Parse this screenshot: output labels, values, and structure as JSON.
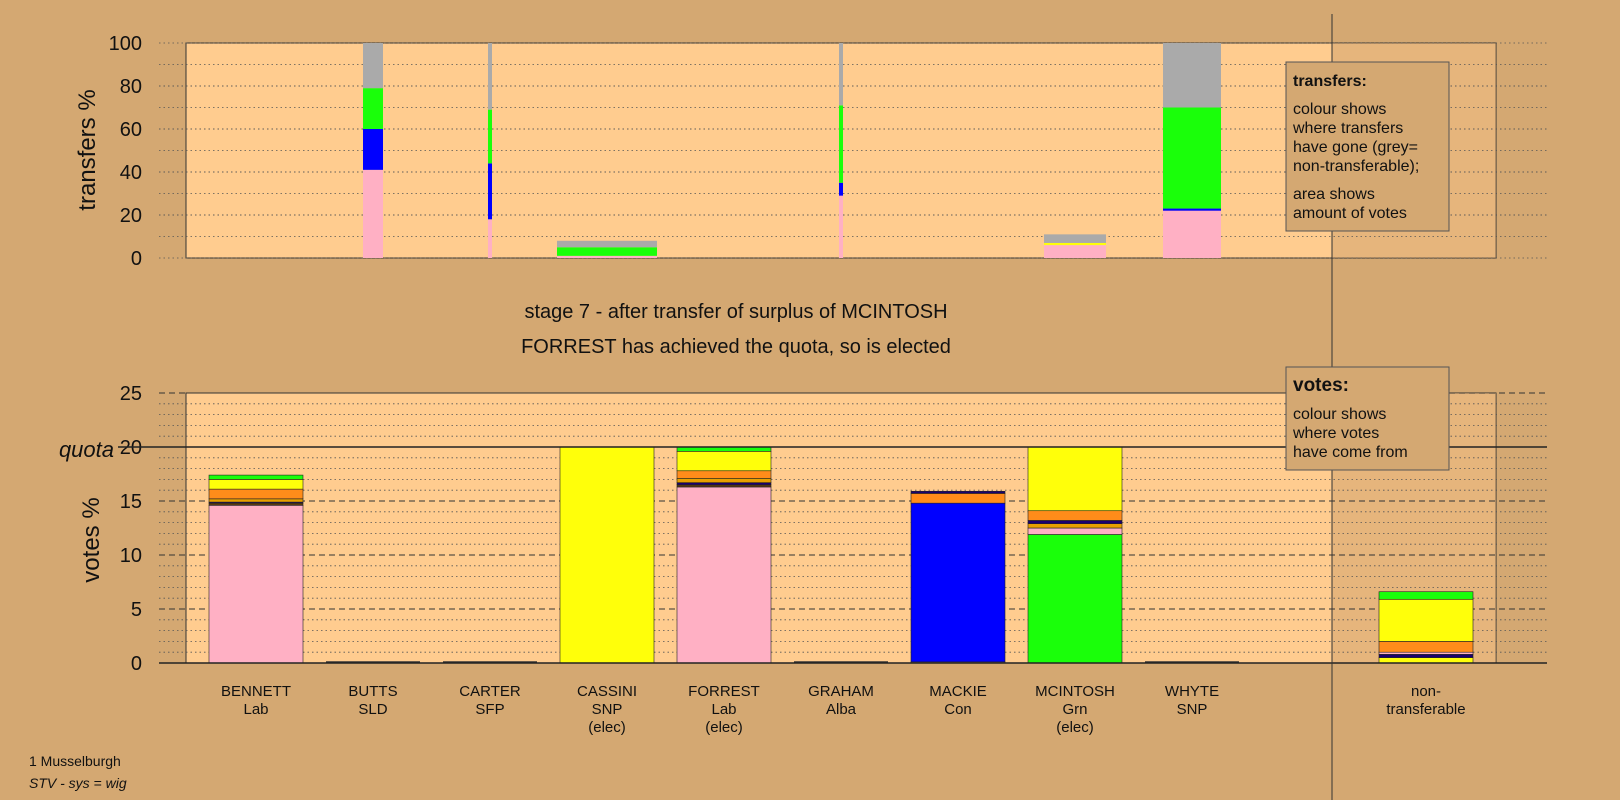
{
  "colors": {
    "background": "#d4a872",
    "plot_background": "#ffcc8f",
    "shade": "#c79a67",
    "Lab": "#ffb0c4",
    "Con": "#0000ff",
    "Grn": "#1aff0a",
    "SNP": "#ffff0a",
    "Alba": "#1a0070",
    "SFP": "#e8a000",
    "SLD": "#ff8c1a",
    "Other": "#5a3a10",
    "non-transferable": "#aaaaaa"
  },
  "chart_data": [
    {
      "type": "bar",
      "stacked": true,
      "name_key": "transfers",
      "ylabel": "transfers %",
      "ylim": [
        0,
        100
      ],
      "yticks": [
        0,
        20,
        40,
        60,
        80,
        100
      ],
      "grid": true,
      "categories": [
        "BENNETT",
        "BUTTS",
        "CARTER",
        "CASSINI",
        "FORREST",
        "GRAHAM",
        "MACKIE",
        "MCINTOSH",
        "WHYTE"
      ],
      "bars": [
        {
          "category": "BUTTS",
          "width_pct": 20,
          "segments": [
            {
              "party": "Lab",
              "value": 41
            },
            {
              "party": "Con",
              "value": 19
            },
            {
              "party": "Grn",
              "value": 19
            },
            {
              "party": "non-transferable",
              "value": 21
            }
          ]
        },
        {
          "category": "CARTER",
          "width_pct": 4,
          "segments": [
            {
              "party": "Lab",
              "value": 18
            },
            {
              "party": "Con",
              "value": 26
            },
            {
              "party": "Grn",
              "value": 25
            },
            {
              "party": "non-transferable",
              "value": 31
            }
          ]
        },
        {
          "category": "CASSINI",
          "width_pct": 100,
          "segments": [
            {
              "party": "Lab",
              "value": 1
            },
            {
              "party": "Grn",
              "value": 4
            },
            {
              "party": "non-transferable",
              "value": 3
            }
          ]
        },
        {
          "category": "GRAHAM",
          "width_pct": 4,
          "segments": [
            {
              "party": "Lab",
              "value": 29
            },
            {
              "party": "Con",
              "value": 6
            },
            {
              "party": "Grn",
              "value": 36
            },
            {
              "party": "non-transferable",
              "value": 29
            }
          ]
        },
        {
          "category": "MCINTOSH",
          "width_pct": 62,
          "segments": [
            {
              "party": "Lab",
              "value": 6
            },
            {
              "party": "SNP",
              "value": 1
            },
            {
              "party": "non-transferable",
              "value": 4
            }
          ]
        },
        {
          "category": "WHYTE",
          "width_pct": 58,
          "segments": [
            {
              "party": "Lab",
              "value": 22
            },
            {
              "party": "Con",
              "value": 1
            },
            {
              "party": "Grn",
              "value": 47
            },
            {
              "party": "non-transferable",
              "value": 30
            }
          ]
        }
      ]
    },
    {
      "type": "bar",
      "stacked": true,
      "name_key": "votes",
      "ylabel": "votes %",
      "ylim": [
        0,
        25
      ],
      "yticks": [
        0,
        5,
        10,
        15,
        20,
        25
      ],
      "quota": 20,
      "quota_label": "quota",
      "grid": true,
      "categories": [
        {
          "name": "BENNETT",
          "party": "Lab",
          "status": ""
        },
        {
          "name": "BUTTS",
          "party": "SLD",
          "status": ""
        },
        {
          "name": "CARTER",
          "party": "SFP",
          "status": ""
        },
        {
          "name": "CASSINI",
          "party": "SNP",
          "status": "(elec)"
        },
        {
          "name": "FORREST",
          "party": "Lab",
          "status": "(elec)"
        },
        {
          "name": "GRAHAM",
          "party": "Alba",
          "status": ""
        },
        {
          "name": "MACKIE",
          "party": "Con",
          "status": ""
        },
        {
          "name": "MCINTOSH",
          "party": "Grn",
          "status": "(elec)"
        },
        {
          "name": "WHYTE",
          "party": "SNP",
          "status": ""
        }
      ],
      "nontransferable_label": [
        "non-",
        "transferable"
      ],
      "bars": [
        {
          "category": "BENNETT",
          "segments": [
            {
              "party": "Lab",
              "value": 14.6
            },
            {
              "party": "Other",
              "value": 0.2
            },
            {
              "party": "Alba",
              "value": 0.1
            },
            {
              "party": "SFP",
              "value": 0.3
            },
            {
              "party": "SLD",
              "value": 0.9
            },
            {
              "party": "SNP",
              "value": 0.9
            },
            {
              "party": "Grn",
              "value": 0.4
            }
          ]
        },
        {
          "category": "CASSINI",
          "segments": [
            {
              "party": "SNP",
              "value": 20
            }
          ]
        },
        {
          "category": "FORREST",
          "segments": [
            {
              "party": "Lab",
              "value": 16.3
            },
            {
              "party": "Other",
              "value": 0.2
            },
            {
              "party": "Alba",
              "value": 0.2
            },
            {
              "party": "SFP",
              "value": 0.4
            },
            {
              "party": "SLD",
              "value": 0.7
            },
            {
              "party": "SNP",
              "value": 1.8
            },
            {
              "party": "Grn",
              "value": 0.4
            }
          ]
        },
        {
          "category": "MACKIE",
          "segments": [
            {
              "party": "Lab",
              "value": 0.1
            },
            {
              "party": "Con",
              "value": 14.7
            },
            {
              "party": "SLD",
              "value": 0.9
            },
            {
              "party": "Alba",
              "value": 0.2
            }
          ]
        },
        {
          "category": "MCINTOSH",
          "segments": [
            {
              "party": "Grn",
              "value": 11.9
            },
            {
              "party": "Lab",
              "value": 0.6
            },
            {
              "party": "SFP",
              "value": 0.4
            },
            {
              "party": "Alba",
              "value": 0.3
            },
            {
              "party": "SLD",
              "value": 0.9
            },
            {
              "party": "SNP",
              "value": 5.9
            }
          ]
        },
        {
          "category": "non-transferable",
          "segments": [
            {
              "party": "SNP",
              "value": 0.5
            },
            {
              "party": "Alba",
              "value": 0.3
            },
            {
              "party": "Lab",
              "value": 0.2
            },
            {
              "party": "SLD",
              "value": 1.0
            },
            {
              "party": "SNP",
              "value": 3.9
            },
            {
              "party": "Grn",
              "value": 0.7
            }
          ]
        }
      ]
    }
  ],
  "stage_title": "stage 7 - after transfer of surplus of MCINTOSH",
  "stage_subtitle": "FORREST has achieved the quota, so is elected",
  "legend_transfers": {
    "title": "transfers:",
    "lines1": [
      "colour shows",
      "where transfers",
      "have gone (grey=",
      "non-transferable);"
    ],
    "lines2": [
      "area shows",
      "amount of votes"
    ]
  },
  "legend_votes": {
    "title": "votes:",
    "lines": [
      "colour shows",
      "where votes",
      "have come from"
    ]
  },
  "footer": {
    "ward": "1 Musselburgh",
    "system": "STV - sys = wig"
  }
}
